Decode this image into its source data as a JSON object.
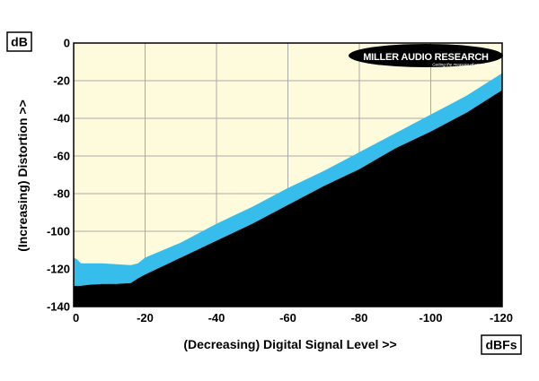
{
  "chart_data": {
    "type": "area",
    "xlabel": "(Decreasing) Digital Signal Level >>",
    "ylabel": "(Increasing) Distortion >>",
    "x_unit": "dBFs",
    "y_unit": "dB",
    "xlim": [
      0,
      -120
    ],
    "ylim": [
      -140,
      0
    ],
    "x_ticks": [
      0,
      -20,
      -40,
      -60,
      -80,
      -100,
      -120
    ],
    "y_ticks": [
      0,
      -20,
      -40,
      -60,
      -80,
      -100,
      -120,
      -140
    ],
    "x_tick_labels": [
      "0",
      "-20",
      "-40",
      "-60",
      "-80",
      "-100",
      "-120"
    ],
    "y_tick_labels": [
      "0",
      "-20",
      "-40",
      "-60",
      "-80",
      "-100",
      "-120",
      "-140"
    ],
    "grid": true,
    "colors": {
      "background": "#FEFBDC",
      "band": "#36BDEB",
      "floor": "#000000",
      "grid": "#A9A9A9"
    },
    "series": [
      {
        "x": [
          0,
          -1,
          -2,
          -4,
          -8,
          -12,
          -16,
          -18,
          -20,
          -30,
          -40,
          -50,
          -60,
          -70,
          -80,
          -90,
          -100,
          -110,
          -120
        ],
        "values": [
          -114,
          -115,
          -117,
          -117,
          -117,
          -117.5,
          -118,
          -117,
          -114,
          -106,
          -96,
          -87,
          -77,
          -68,
          -58,
          -48,
          -38,
          -28,
          -16
        ]
      },
      {
        "x": [
          0,
          -2,
          -4,
          -8,
          -12,
          -16,
          -18,
          -20,
          -30,
          -40,
          -50,
          -60,
          -70,
          -80,
          -90,
          -100,
          -110,
          -120
        ],
        "values": [
          -129,
          -129,
          -128.5,
          -128,
          -128,
          -127.5,
          -125,
          -123,
          -114,
          -105,
          -96,
          -86,
          -76,
          -67,
          -56,
          -47,
          -37,
          -25
        ]
      }
    ],
    "logo": {
      "brand": "MILLER AUDIO RESEARCH",
      "tagline": "Getting the measure of sound quality"
    }
  }
}
